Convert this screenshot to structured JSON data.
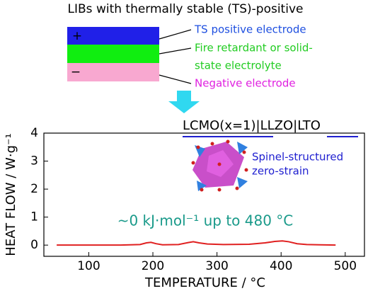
{
  "diagram": {
    "title": "LIBs with thermally stable (TS)-positive",
    "plus": "+",
    "minus": "−",
    "labels": [
      "TS positive electrode",
      "Fire retardant or solid-",
      "state electrolyte",
      "Negative electrode"
    ]
  },
  "chart_data": {
    "type": "line",
    "cell": [
      "LCMO(x=1)",
      "|LLZO|",
      "LTO"
    ],
    "inset_text": [
      "Spinel-structured",
      "zero-strain"
    ],
    "annotation": "~0 kJ·mol⁻¹ up to 480 °C",
    "xlabel": "TEMPERATURE / °C",
    "ylabel": "HEAT FLOW / W·g⁻¹",
    "xlim": [
      30,
      530
    ],
    "ylim": [
      -0.4,
      4
    ],
    "xticks": [
      100,
      200,
      300,
      400,
      500
    ],
    "yticks": [
      0,
      1,
      2,
      3,
      4
    ],
    "series": [
      {
        "color": "#e02020",
        "x": [
          50,
          100,
          150,
          180,
          190,
          197,
          205,
          215,
          240,
          255,
          263,
          272,
          285,
          310,
          350,
          375,
          390,
          402,
          412,
          425,
          440,
          460,
          485
        ],
        "values": [
          0,
          0,
          0,
          0.02,
          0.08,
          0.1,
          0.05,
          0.01,
          0.02,
          0.09,
          0.12,
          0.08,
          0.04,
          0.02,
          0.03,
          0.08,
          0.13,
          0.15,
          0.12,
          0.05,
          0.02,
          0.01,
          0
        ]
      }
    ]
  }
}
